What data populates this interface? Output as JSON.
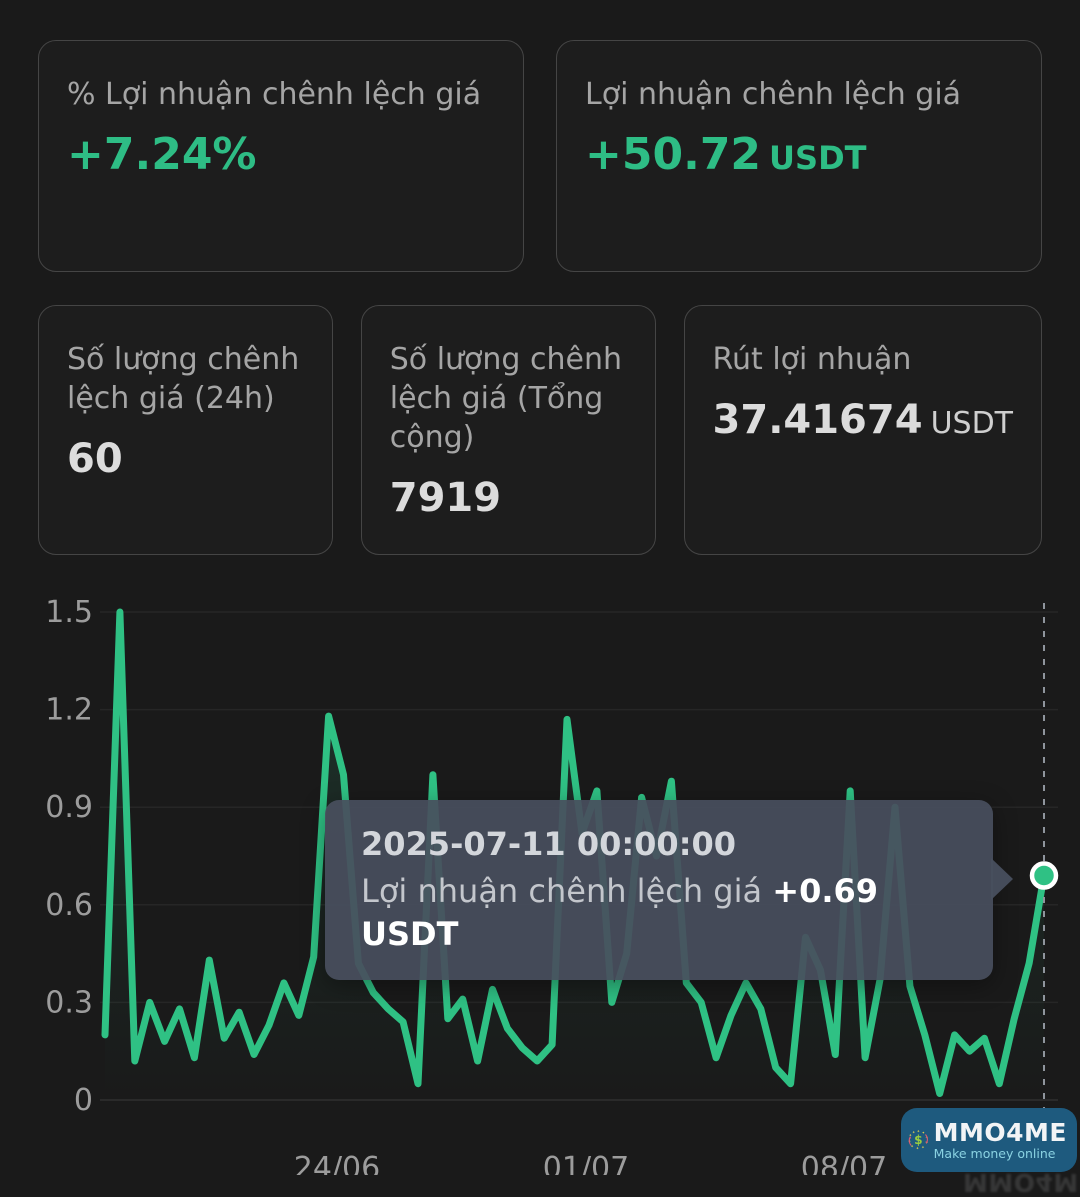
{
  "cards": [
    {
      "label": "% Lợi nhuận chênh lệch giá",
      "value": "+7.24%",
      "unit": ""
    },
    {
      "label": "Lợi nhuận chênh lệch giá",
      "value": "+50.72",
      "unit": "USDT"
    },
    {
      "label": "Số lượng chênh lệch giá (24h)",
      "value": "60",
      "unit": ""
    },
    {
      "label": "Số lượng chênh lệch giá (Tổng cộng)",
      "value": "7919",
      "unit": ""
    },
    {
      "label": "Rút lợi nhuận",
      "value": "37.41674",
      "unit": "USDT"
    }
  ],
  "tooltip": {
    "date": "2025-07-11 00:00:00",
    "label": "Lợi nhuận chênh lệch giá ",
    "value": "+0.69",
    "unit": "USDT"
  },
  "watermark": {
    "title": "MMO4ME",
    "subtitle": "Make money online"
  },
  "colors": {
    "background": "#1a1a1a",
    "card_border": "#454545",
    "accent_green": "#2ebd85",
    "line_green": "#2fc184",
    "label_gray": "#a5a5a5",
    "tick_gray": "#9c9c9c",
    "tooltip_bg": "#484f5e",
    "badge_blue": "#1e5a7e"
  },
  "chart_data": {
    "type": "line",
    "title": "",
    "xlabel": "",
    "ylabel": "",
    "ylim": [
      0,
      1.5
    ],
    "grid": true,
    "y_ticks": [
      "1.5",
      "1.2",
      "0.9",
      "0.6",
      "0.3",
      "0"
    ],
    "x_ticks": [
      "24/06",
      "01/07",
      "08/07"
    ],
    "x_tick_pos": [
      0.247,
      0.512,
      0.787
    ],
    "unit": "USDT",
    "series": [
      {
        "name": "Lợi nhuận chênh lệch giá",
        "values": [
          0.2,
          1.5,
          0.12,
          0.3,
          0.18,
          0.28,
          0.13,
          0.43,
          0.19,
          0.27,
          0.14,
          0.23,
          0.36,
          0.26,
          0.44,
          1.18,
          1.0,
          0.42,
          0.33,
          0.28,
          0.24,
          0.05,
          1.0,
          0.25,
          0.31,
          0.12,
          0.34,
          0.22,
          0.16,
          0.12,
          0.17,
          1.17,
          0.82,
          0.95,
          0.3,
          0.45,
          0.93,
          0.75,
          0.98,
          0.36,
          0.3,
          0.13,
          0.26,
          0.36,
          0.28,
          0.1,
          0.05,
          0.5,
          0.4,
          0.14,
          0.95,
          0.13,
          0.37,
          0.9,
          0.35,
          0.2,
          0.02,
          0.2,
          0.15,
          0.19,
          0.05,
          0.25,
          0.42,
          0.69
        ]
      }
    ],
    "highlight": {
      "date": "2025-07-11 00:00:00",
      "value": 0.69
    }
  }
}
